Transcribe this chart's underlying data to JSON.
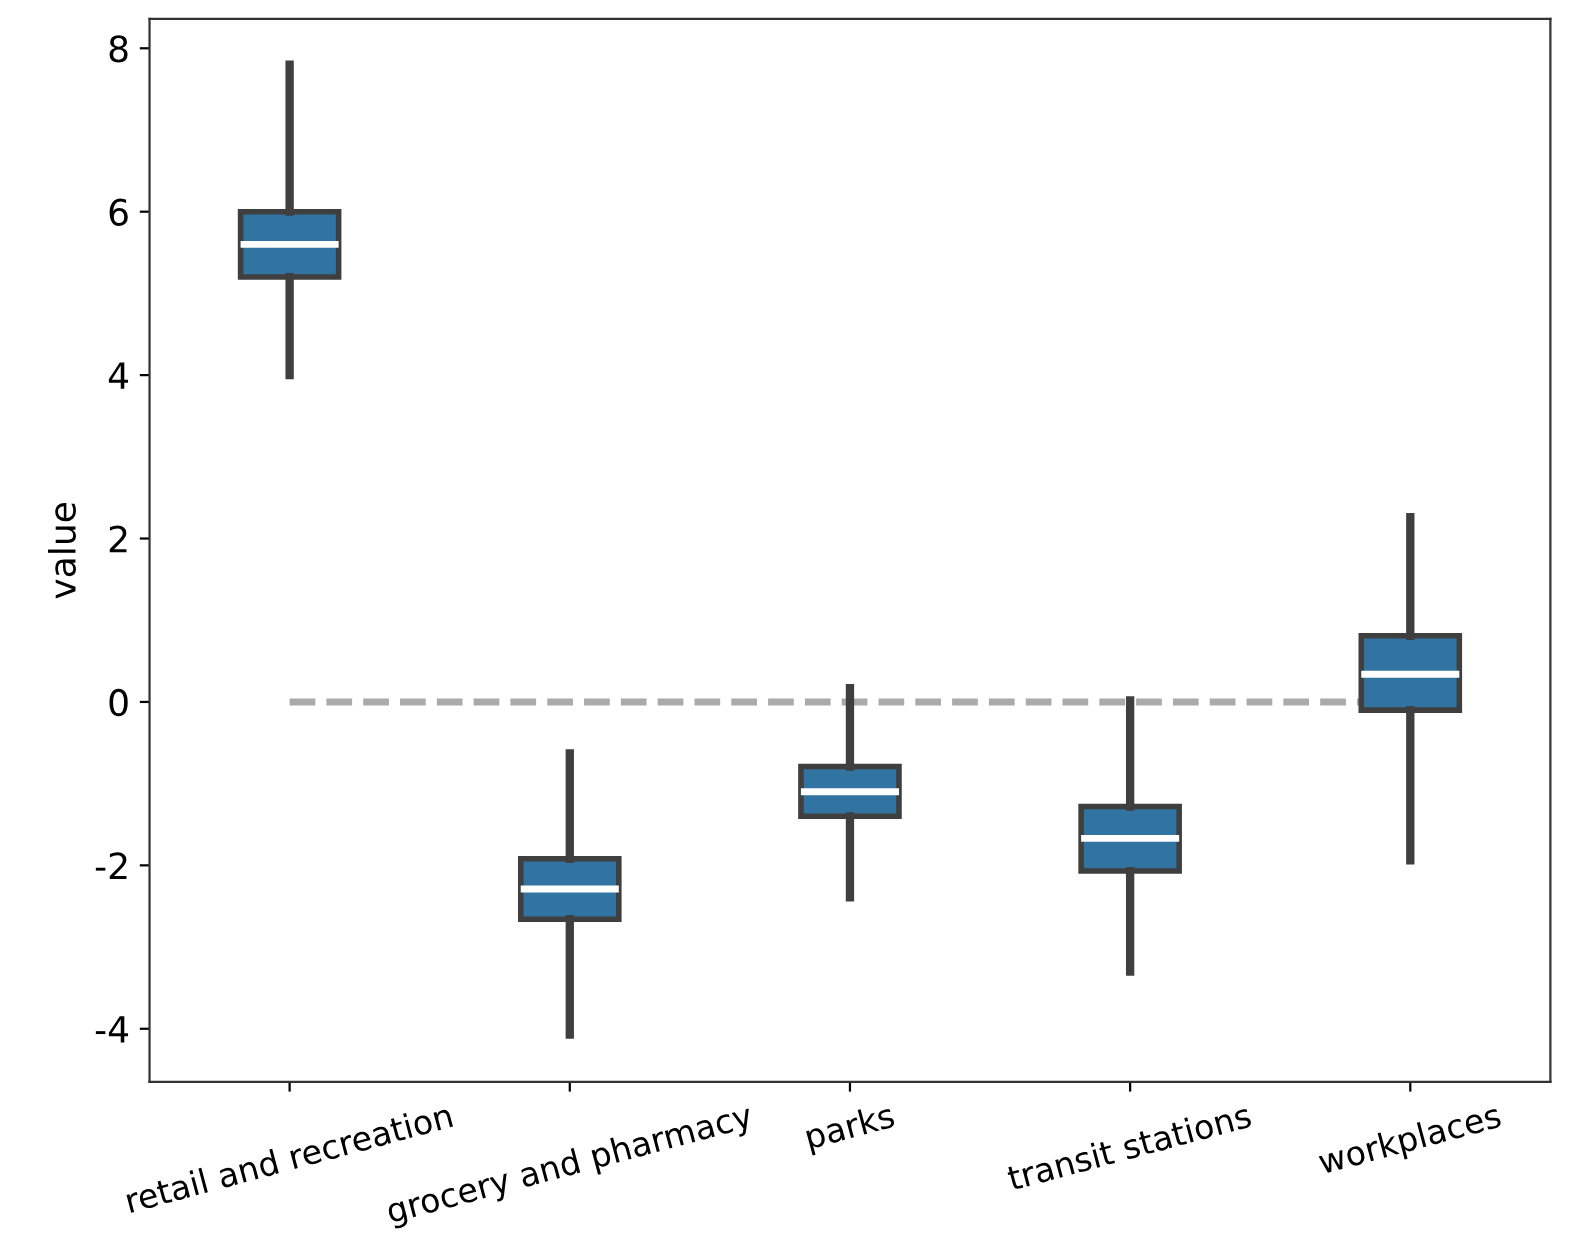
{
  "chart_data": {
    "type": "box",
    "ylabel": "value",
    "categories": [
      "retail and recreation",
      "grocery and pharmacy",
      "parks",
      "transit stations",
      "workplaces"
    ],
    "boxes": [
      {
        "low": 4.0,
        "q1": 5.2,
        "median": 5.6,
        "q3": 6.0,
        "high": 7.8
      },
      {
        "low": -4.07,
        "q1": -2.66,
        "median": -2.29,
        "q3": -1.92,
        "high": -0.63
      },
      {
        "low": -2.39,
        "q1": -1.4,
        "median": -1.1,
        "q3": -0.79,
        "high": 0.17
      },
      {
        "low": -3.3,
        "q1": -2.07,
        "median": -1.67,
        "q3": -1.28,
        "high": 0.02
      },
      {
        "low": -1.94,
        "q1": -0.1,
        "median": 0.34,
        "q3": 0.81,
        "high": 2.26
      }
    ],
    "color": "#3274a1",
    "ylim": [
      -4.65,
      8.36
    ],
    "yticks": [
      -4,
      -2,
      0,
      2,
      4,
      6,
      8
    ],
    "ref_lines": [
      {
        "axis": "y",
        "value": 0,
        "color": "#aaaaaa",
        "line_style": "dashed"
      }
    ],
    "grid": false
  }
}
